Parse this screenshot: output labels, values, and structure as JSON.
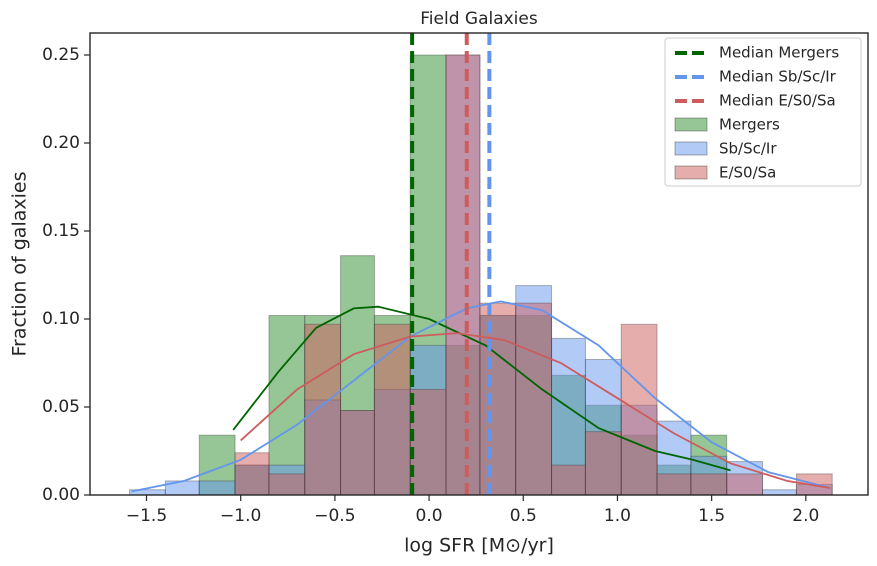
{
  "chart_data": {
    "type": "histogram",
    "title": "Field Galaxies",
    "x_label": "log SFR [M⊙/yr]",
    "y_label": "Fraction of galaxies",
    "xlim": [
      -1.8,
      2.33
    ],
    "ylim": [
      0,
      0.2625
    ],
    "xticks": [
      {
        "value": -1.5,
        "label": "−1.5"
      },
      {
        "value": -1.0,
        "label": "−1.0"
      },
      {
        "value": -0.5,
        "label": "−0.5"
      },
      {
        "value": 0,
        "label": "0.0"
      },
      {
        "value": 0.5,
        "label": "0.5"
      },
      {
        "value": 1.0,
        "label": "1.0"
      },
      {
        "value": 1.5,
        "label": "1.5"
      },
      {
        "value": 2.0,
        "label": "2.0"
      }
    ],
    "yticks": [
      {
        "value": 0,
        "label": "0.00"
      },
      {
        "value": 0.05,
        "label": "0.05"
      },
      {
        "value": 0.1,
        "label": "0.10"
      },
      {
        "value": 0.15,
        "label": "0.15"
      },
      {
        "value": 0.2,
        "label": "0.20"
      },
      {
        "value": 0.25,
        "label": "0.25"
      }
    ],
    "legend": "upper right",
    "median_lines": [
      {
        "name": "Median Mergers",
        "color": "#006400",
        "value": -0.09
      },
      {
        "name": "Median Sb/Sc/Ir",
        "color": "#6495ed",
        "value": 0.32
      },
      {
        "name": "Median E/S0/Sa",
        "color": "#cd5c5c",
        "value": 0.2
      }
    ],
    "series": [
      {
        "name": "Mergers",
        "color": "#2e8b2e",
        "bins": [
          -1.22,
          -1.03,
          -0.85,
          -0.66,
          -0.47,
          -0.29,
          -0.1,
          0.09,
          0.27,
          0.46,
          0.65,
          0.83,
          1.02,
          1.21,
          1.39,
          1.58
        ],
        "values": [
          0.034,
          0.017,
          0.102,
          0.102,
          0.136,
          0.102,
          0.25,
          0.085,
          0.102,
          0.102,
          0.068,
          0.051,
          0.034,
          0.017,
          0.034
        ]
      },
      {
        "name": "Sb/Sc/Ir",
        "color": "#6495ed",
        "bins": [
          -1.59,
          -1.4,
          -1.22,
          -1.03,
          -0.85,
          -0.66,
          -0.47,
          -0.29,
          -0.1,
          0.09,
          0.27,
          0.46,
          0.65,
          0.83,
          1.02,
          1.21,
          1.39,
          1.58,
          1.77,
          1.95,
          2.14
        ],
        "values": [
          0.003,
          0.008,
          0.008,
          0.017,
          0.017,
          0.054,
          0.048,
          0.06,
          0.085,
          0.25,
          0.102,
          0.119,
          0.089,
          0.077,
          0.051,
          0.042,
          0.022,
          0.019,
          0.003,
          0.006
        ]
      },
      {
        "name": "E/S0/Sa",
        "color": "#cd5c5c",
        "bins": [
          -1.03,
          -0.85,
          -0.66,
          -0.47,
          -0.29,
          -0.1,
          0.09,
          0.27,
          0.46,
          0.65,
          0.83,
          1.02,
          1.21,
          1.39,
          1.58,
          1.77,
          1.95,
          2.14
        ],
        "values": [
          0.024,
          0.012,
          0.097,
          0.048,
          0.097,
          0.06,
          0.25,
          0.109,
          0.109,
          0.017,
          0.036,
          0.097,
          0.012,
          0.012,
          0.012,
          0.0,
          0.012
        ]
      }
    ],
    "kde": [
      {
        "color": "#006400",
        "x": [
          -1.04,
          -0.8,
          -0.6,
          -0.4,
          -0.27,
          0,
          0.3,
          0.6,
          0.9,
          1.2,
          1.4,
          1.6
        ],
        "values": [
          0.037,
          0.07,
          0.095,
          0.106,
          0.107,
          0.1,
          0.085,
          0.06,
          0.038,
          0.025,
          0.02,
          0.014
        ]
      },
      {
        "color": "#6495ed",
        "x": [
          -1.58,
          -1.3,
          -1.0,
          -0.7,
          -0.4,
          -0.1,
          0.2,
          0.38,
          0.6,
          0.9,
          1.2,
          1.5,
          1.8,
          2.13
        ],
        "values": [
          0.002,
          0.008,
          0.02,
          0.04,
          0.065,
          0.09,
          0.106,
          0.11,
          0.105,
          0.085,
          0.055,
          0.03,
          0.013,
          0.004
        ]
      },
      {
        "color": "#cd5c5c",
        "x": [
          -1.0,
          -0.7,
          -0.4,
          -0.1,
          0.15,
          0.4,
          0.7,
          1.0,
          1.3,
          1.6,
          1.9,
          2.13
        ],
        "values": [
          0.031,
          0.06,
          0.08,
          0.09,
          0.092,
          0.088,
          0.075,
          0.055,
          0.035,
          0.018,
          0.008,
          0.004
        ]
      }
    ]
  }
}
